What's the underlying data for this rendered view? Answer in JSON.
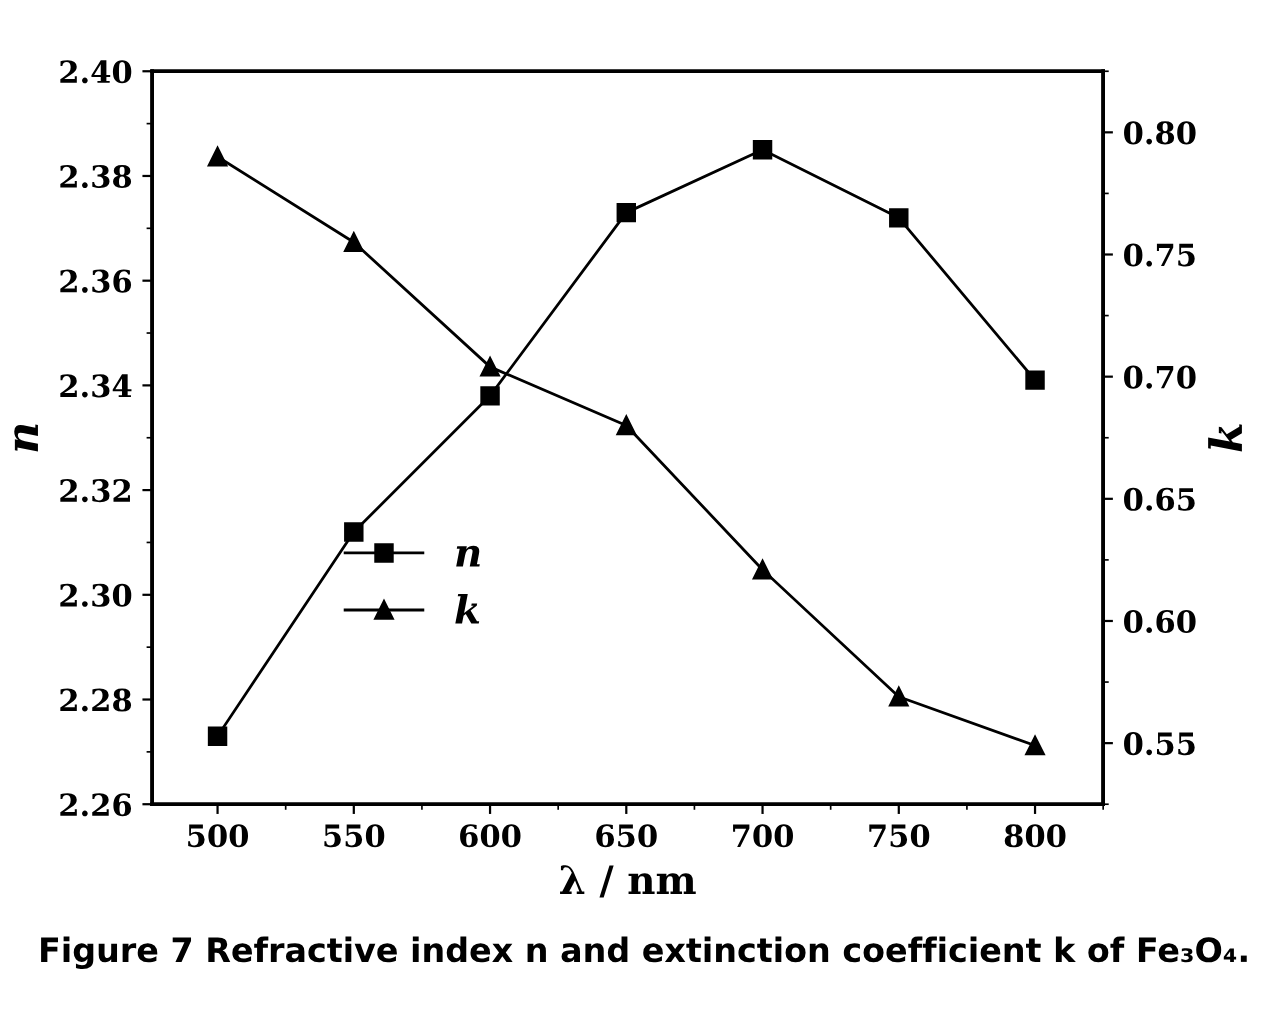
{
  "chart_data": {
    "type": "line",
    "xlabel": "λ / nm",
    "ylabel": "n",
    "y2label": "k",
    "x": [
      500,
      550,
      600,
      650,
      700,
      750,
      800
    ],
    "series": [
      {
        "name": "n",
        "color": "#000000",
        "marker": "square",
        "values": [
          2.273,
          2.312,
          2.338,
          2.373,
          2.385,
          2.372,
          2.341
        ]
      },
      {
        "name": "k",
        "color": "#000000",
        "marker": "triangle",
        "axis": "y2",
        "values": [
          0.79,
          0.755,
          0.704,
          0.68,
          0.621,
          0.569,
          0.549
        ]
      }
    ],
    "xlim": [
      476,
      825
    ],
    "xticks": [
      500,
      550,
      600,
      650,
      700,
      750,
      800
    ],
    "ylim": [
      2.26,
      2.4
    ],
    "yticks": [
      {
        "value": 2.26,
        "label": "2.26"
      },
      {
        "value": 2.28,
        "label": "2.28"
      },
      {
        "value": 2.3,
        "label": "2.30"
      },
      {
        "value": 2.32,
        "label": "2.32"
      },
      {
        "value": 2.34,
        "label": "2.34"
      },
      {
        "value": 2.36,
        "label": "2.36"
      },
      {
        "value": 2.38,
        "label": "2.38"
      },
      {
        "value": 2.4,
        "label": "2.40"
      }
    ],
    "y2lim": [
      0.525,
      0.825
    ],
    "y2ticks": [
      {
        "value": 0.55,
        "label": "0.55"
      },
      {
        "value": 0.6,
        "label": "0.60"
      },
      {
        "value": 0.65,
        "label": "0.65"
      },
      {
        "value": 0.7,
        "label": "0.70"
      },
      {
        "value": 0.75,
        "label": "0.75"
      },
      {
        "value": 0.8,
        "label": "0.80"
      }
    ],
    "legend": "center",
    "grid": false,
    "line_style": "solid",
    "annotations": [
      "Figure 7 Refractive index n and extinction coefficient k of Fe₃O₄."
    ]
  }
}
